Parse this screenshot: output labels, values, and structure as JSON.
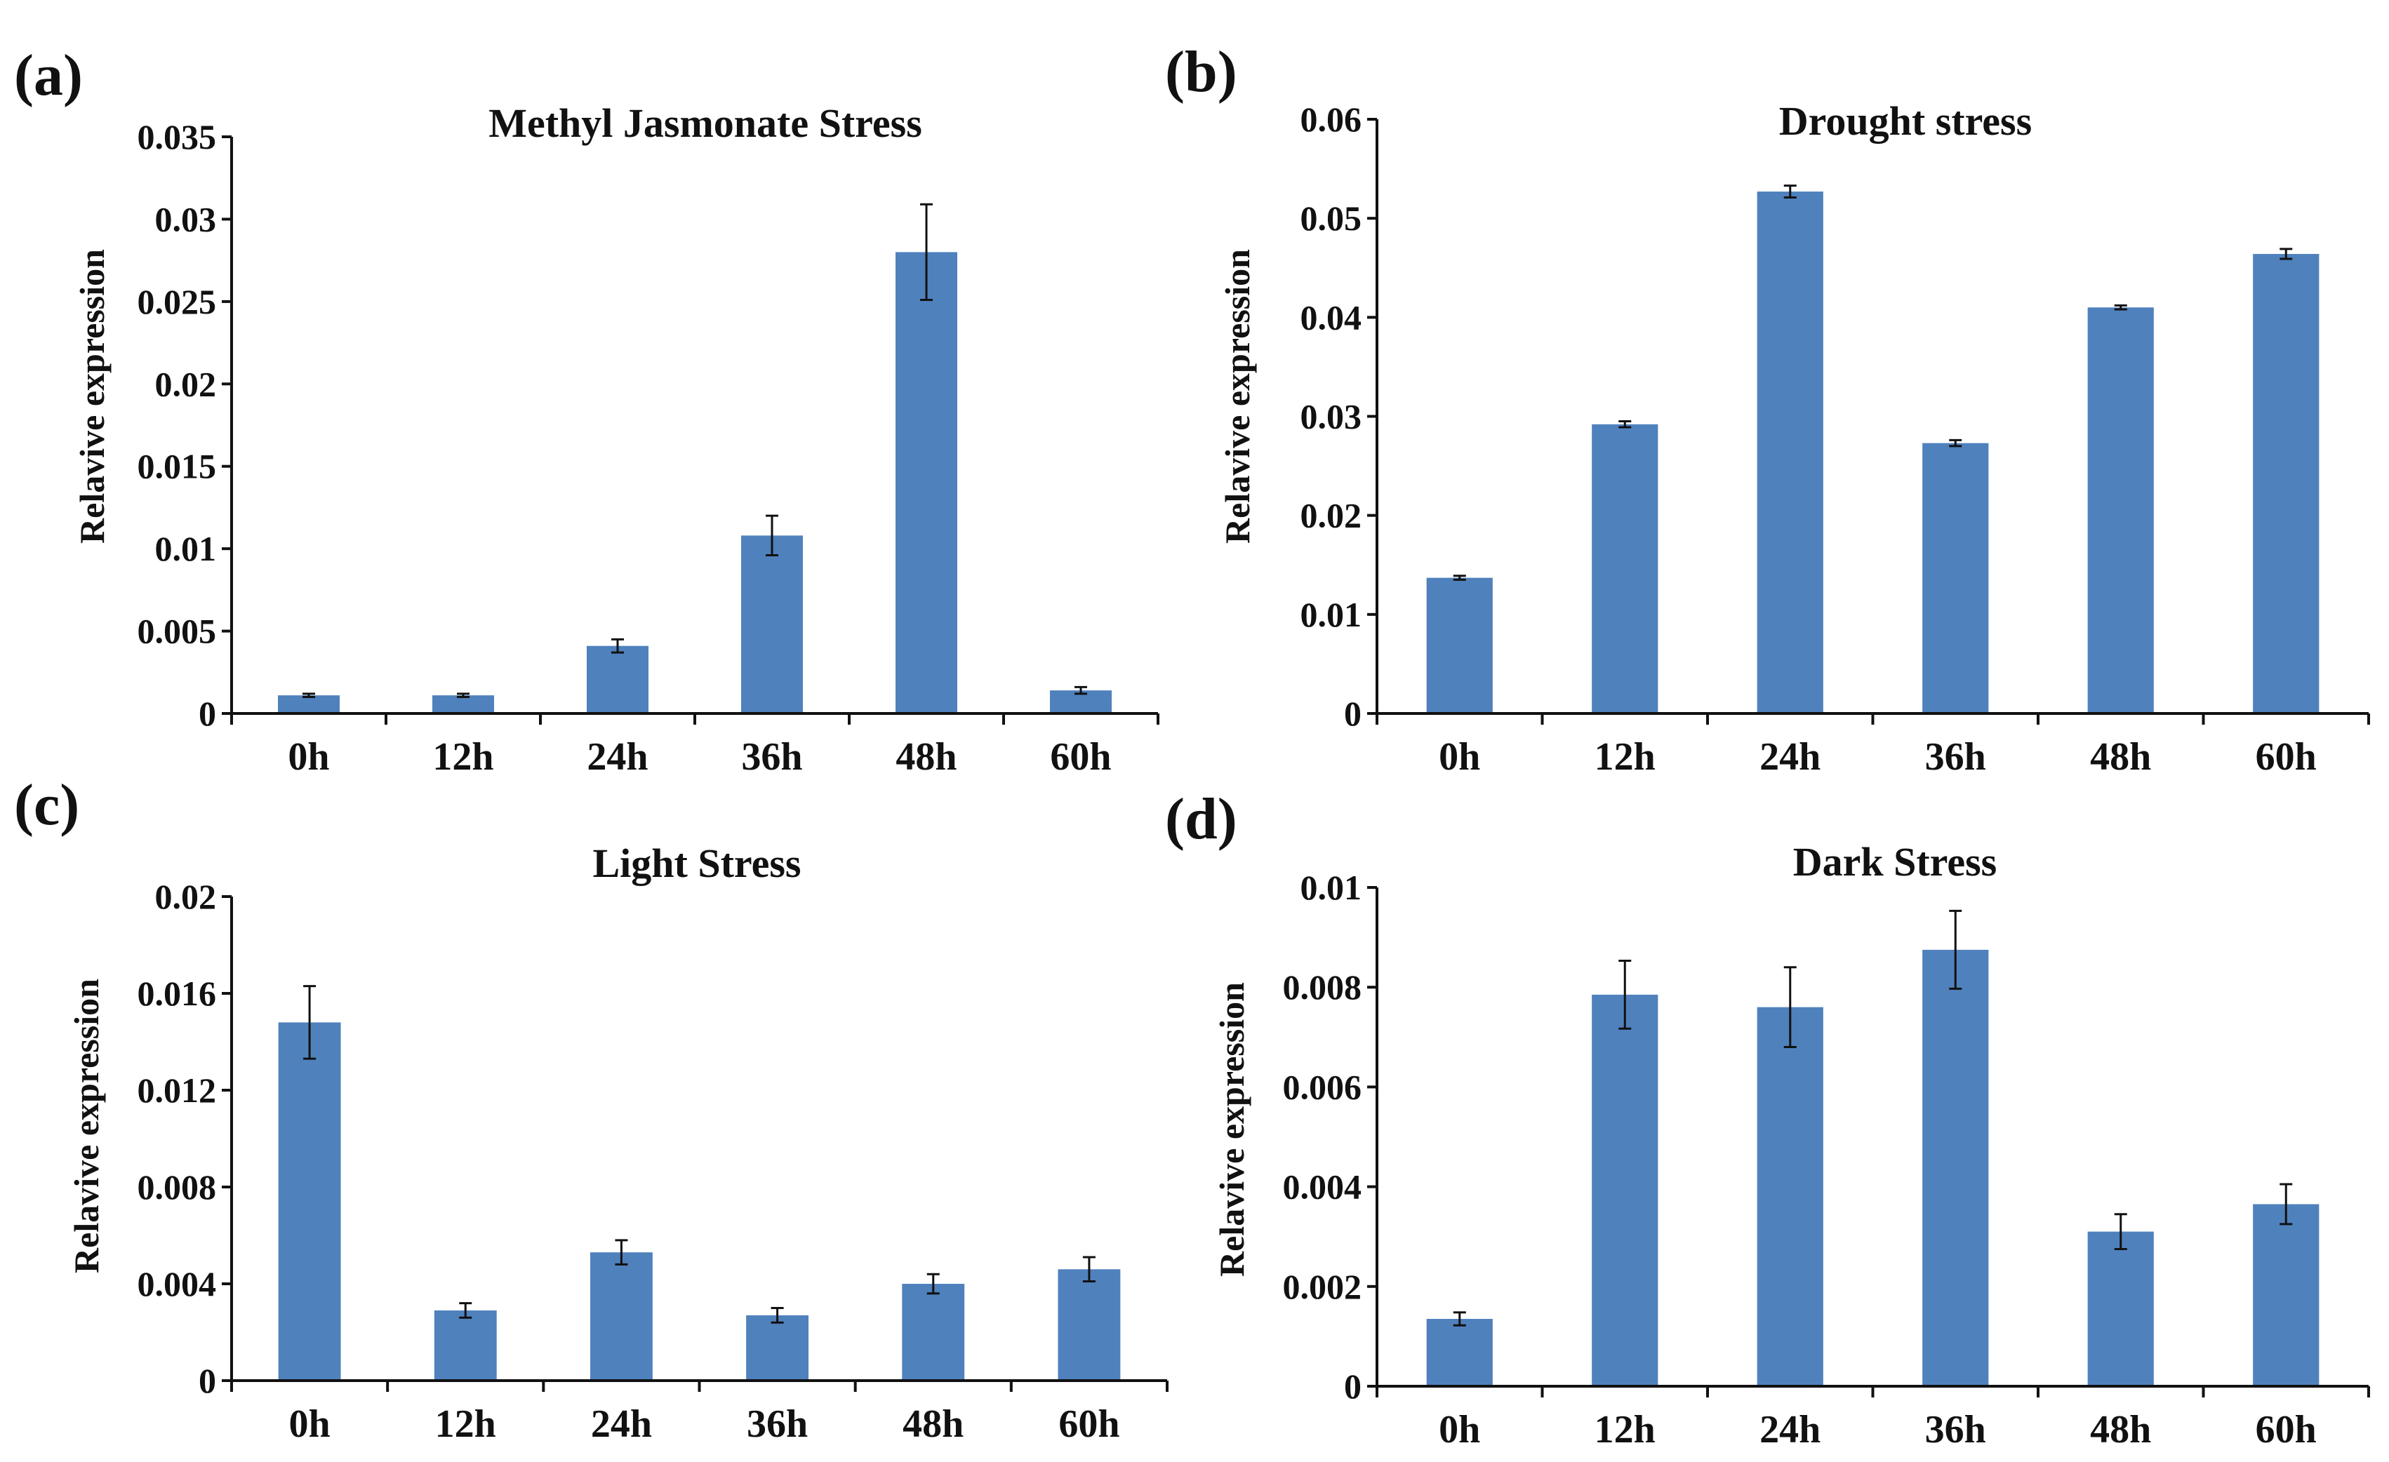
{
  "chart_data": [
    {
      "type": "bar",
      "panel": "(a)",
      "title": "Methyl Jasmonate Stress",
      "xlabel": "",
      "ylabel": "Relavive expression",
      "categories": [
        "0h",
        "12h",
        "24h",
        "36h",
        "48h",
        "60h"
      ],
      "values": [
        0.0011,
        0.0011,
        0.0041,
        0.0108,
        0.028,
        0.0014
      ],
      "errors": [
        0.0001,
        0.0001,
        0.0004,
        0.0012,
        0.0029,
        0.0002
      ],
      "ylim": [
        0,
        0.035
      ],
      "yticks": [
        0,
        0.005,
        0.01,
        0.015,
        0.02,
        0.025,
        0.03,
        0.035
      ],
      "ytick_labels": [
        "0",
        "0.005",
        "0.01",
        "0.015",
        "0.02",
        "0.025",
        "0.03",
        "0.035"
      ],
      "bar_color": "#4f81bd",
      "grid": false
    },
    {
      "type": "bar",
      "panel": "(b)",
      "title": "Drought stress",
      "xlabel": "",
      "ylabel": "Relavive expression",
      "categories": [
        "0h",
        "12h",
        "24h",
        "36h",
        "48h",
        "60h"
      ],
      "values": [
        0.0137,
        0.0292,
        0.0527,
        0.0273,
        0.041,
        0.0464
      ],
      "errors": [
        0.0002,
        0.0003,
        0.0006,
        0.0003,
        0.0002,
        0.0005
      ],
      "ylim": [
        0,
        0.06
      ],
      "yticks": [
        0,
        0.01,
        0.02,
        0.03,
        0.04,
        0.05,
        0.06
      ],
      "ytick_labels": [
        "0",
        "0.01",
        "0.02",
        "0.03",
        "0.04",
        "0.05",
        "0.06"
      ],
      "bar_color": "#4f81bd",
      "grid": false
    },
    {
      "type": "bar",
      "panel": "(c)",
      "title": "Light Stress",
      "xlabel": "",
      "ylabel": "Relavive expression",
      "categories": [
        "0h",
        "12h",
        "24h",
        "36h",
        "48h",
        "60h"
      ],
      "values": [
        0.0148,
        0.0029,
        0.0053,
        0.0027,
        0.004,
        0.0046
      ],
      "errors": [
        0.0015,
        0.0003,
        0.0005,
        0.0003,
        0.0004,
        0.0005
      ],
      "ylim": [
        0,
        0.02
      ],
      "yticks": [
        0,
        0.004,
        0.008,
        0.012,
        0.016,
        0.02
      ],
      "ytick_labels": [
        "0",
        "0.004",
        "0.008",
        "0.012",
        "0.016",
        "0.02"
      ],
      "bar_color": "#4f81bd",
      "grid": false
    },
    {
      "type": "bar",
      "panel": "(d)",
      "title": "Dark Stress",
      "xlabel": "",
      "ylabel": "Relavive expression",
      "categories": [
        "0h",
        "12h",
        "24h",
        "36h",
        "48h",
        "60h"
      ],
      "values": [
        0.00135,
        0.00785,
        0.0076,
        0.00875,
        0.0031,
        0.00365
      ],
      "errors": [
        0.00013,
        0.00068,
        0.0008,
        0.00078,
        0.00035,
        0.0004
      ],
      "ylim": [
        0,
        0.01
      ],
      "yticks": [
        0,
        0.002,
        0.004,
        0.006,
        0.008,
        0.01
      ],
      "ytick_labels": [
        "0",
        "0.002",
        "0.004",
        "0.006",
        "0.008",
        "0.01"
      ],
      "bar_color": "#4f81bd",
      "grid": false
    }
  ]
}
